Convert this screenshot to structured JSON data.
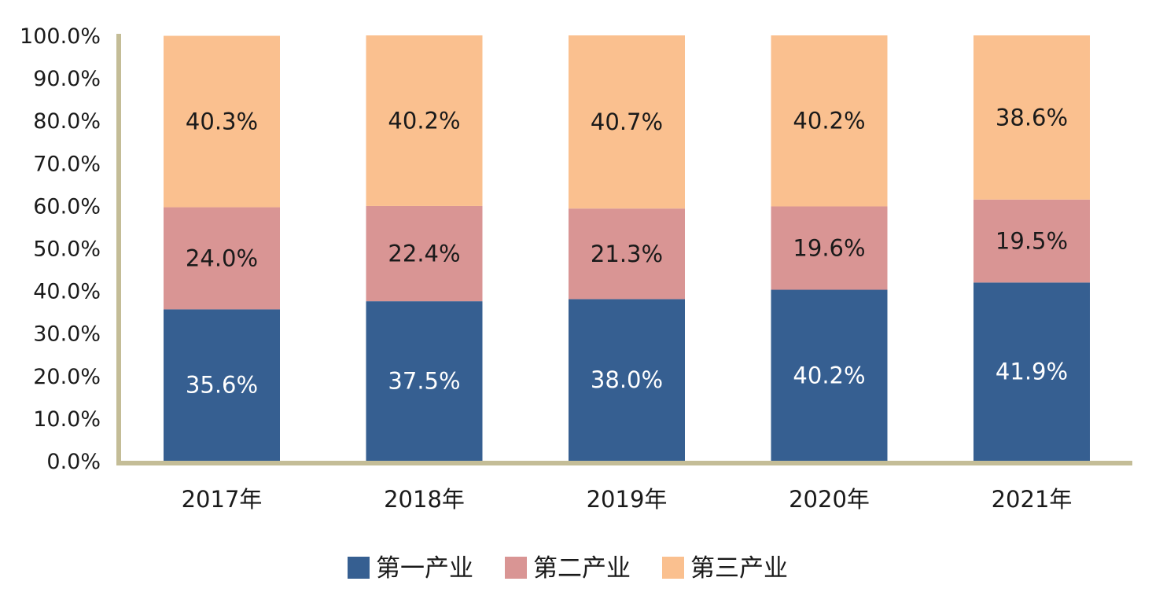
{
  "chart_data": {
    "type": "bar",
    "stacked": true,
    "categories": [
      "2017年",
      "2018年",
      "2019年",
      "2020年",
      "2021年"
    ],
    "series": [
      {
        "name": "第一产业",
        "color": "#365f91",
        "values": [
          35.6,
          37.5,
          38.0,
          40.2,
          41.9
        ],
        "labels": [
          "35.6%",
          "37.5%",
          "38.0%",
          "40.2%",
          "41.9%"
        ]
      },
      {
        "name": "第二产业",
        "color": "#d99594",
        "values": [
          24.0,
          22.4,
          21.3,
          19.6,
          19.5
        ],
        "labels": [
          "24.0%",
          "22.4%",
          "21.3%",
          "19.6%",
          "19.5%"
        ]
      },
      {
        "name": "第三产业",
        "color": "#fac08f",
        "values": [
          40.3,
          40.2,
          40.7,
          40.2,
          38.6
        ],
        "labels": [
          "40.3%",
          "40.2%",
          "40.7%",
          "40.2%",
          "38.6%"
        ]
      }
    ],
    "y_ticks": [
      "0.0%",
      "10.0%",
      "20.0%",
      "30.0%",
      "40.0%",
      "50.0%",
      "60.0%",
      "70.0%",
      "80.0%",
      "90.0%",
      "100.0%"
    ],
    "ylim": [
      0,
      100
    ],
    "axis_color": "#c4bd97",
    "grid": false,
    "legend_position": "bottom"
  }
}
